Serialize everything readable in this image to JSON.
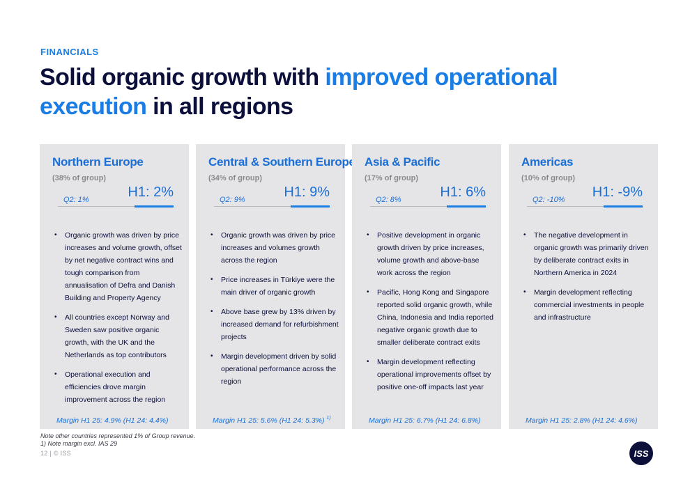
{
  "section_label": "FINANCIALS",
  "title": {
    "part1": "Solid organic growth with ",
    "highlight": "improved operational execution",
    "part2": " in all regions"
  },
  "cards": [
    {
      "name": "Northern Europe",
      "share": "(38% of group)",
      "q2": "Q2: 1%",
      "h1": "H1: 2%",
      "bullets": [
        "Organic growth was driven by price increases and volume growth, offset by net negative contract wins and tough comparison from annualisation of Defra and Danish Building and Property Agency",
        "All countries except Norway and Sweden saw positive organic growth, with the UK and the Netherlands as top contributors",
        "Operational execution and efficiencies drove margin improvement across the region"
      ],
      "margin": "Margin H1 25: 4.9% (H1 24: 4.4%)",
      "margin_note": ""
    },
    {
      "name": "Central & Southern Europe",
      "share": "(34% of group)",
      "q2": "Q2: 9%",
      "h1": "H1: 9%",
      "bullets": [
        "Organic growth was driven by price increases and volumes growth across the region",
        "Price increases in Türkiye were the main driver of organic growth",
        "Above base grew by 13% driven by increased demand for refurbishment projects",
        "Margin development driven by solid operational performance across the region"
      ],
      "margin": "Margin H1 25: 5.6% (H1 24: 5.3%)",
      "margin_note": "1)"
    },
    {
      "name": "Asia & Pacific",
      "share": "(17% of group)",
      "q2": "Q2: 8%",
      "h1": "H1: 6%",
      "bullets": [
        "Positive development in organic growth driven by price increases, volume growth and above-base work across the region",
        "Pacific, Hong Kong and Singapore reported solid organic growth, while China, Indonesia and India reported negative organic growth due to smaller deliberate contract exits",
        "Margin development reflecting operational improvements offset by positive one-off impacts last year"
      ],
      "margin": "Margin H1 25: 6.7% (H1 24: 6.8%)",
      "margin_note": ""
    },
    {
      "name": "Americas",
      "share": "(10% of group)",
      "q2": "Q2: -10%",
      "h1": "H1: -9%",
      "bullets": [
        "The negative development in organic growth was primarily driven by deliberate contract exits in Northern America in 2024",
        "Margin development reflecting commercial investments in people and infrastructure"
      ],
      "margin": "Margin H1 25: 2.8% (H1 24: 4.6%)",
      "margin_note": ""
    }
  ],
  "notes": [
    "Note other countries represented 1% of Group revenue.",
    "1) Note margin excl. IAS 29"
  ],
  "footer": "12  |  © ISS",
  "logo_text": "ISS",
  "colors": {
    "accent": "#1a7de6",
    "navy": "#0b0f3a",
    "card_bg": "#e5e5e7"
  }
}
